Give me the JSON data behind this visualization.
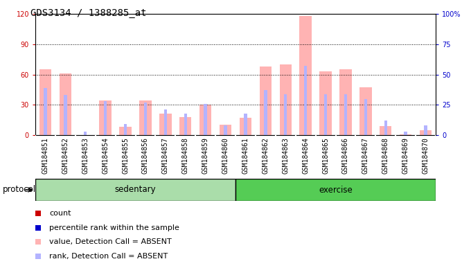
{
  "title": "GDS3134 / 1388285_at",
  "samples": [
    "GSM184851",
    "GSM184852",
    "GSM184853",
    "GSM184854",
    "GSM184855",
    "GSM184856",
    "GSM184857",
    "GSM184858",
    "GSM184859",
    "GSM184860",
    "GSM184861",
    "GSM184862",
    "GSM184863",
    "GSM184864",
    "GSM184865",
    "GSM184866",
    "GSM184867",
    "GSM184868",
    "GSM184869",
    "GSM184870"
  ],
  "absent_value": [
    65,
    61,
    0,
    34,
    8,
    34,
    21,
    18,
    30,
    10,
    17,
    68,
    70,
    118,
    63,
    65,
    47,
    9,
    1,
    5
  ],
  "absent_rank": [
    39,
    33,
    3,
    28,
    9,
    27,
    21,
    18,
    26,
    8,
    18,
    37,
    34,
    57,
    34,
    34,
    30,
    12,
    3,
    8
  ],
  "sedentary_count": 10,
  "exercise_count": 10,
  "sedentary_label": "sedentary",
  "exercise_label": "exercise",
  "protocol_label": "protocol",
  "ylim_left": [
    0,
    120
  ],
  "ylim_right": [
    0,
    100
  ],
  "yticks_left": [
    0,
    30,
    60,
    90,
    120
  ],
  "yticks_right": [
    0,
    25,
    50,
    75,
    100
  ],
  "ytick_labels_right": [
    "0",
    "25",
    "50",
    "75",
    "100%"
  ],
  "color_absent_bar": "#ffb3b3",
  "color_absent_rank": "#b3b3ff",
  "color_count": "#cc0000",
  "color_rank": "#0000cc",
  "bg_chart": "#ffffff",
  "bg_xticklabel": "#d3d3d3",
  "bg_sedentary": "#aaddaa",
  "bg_exercise": "#55cc55",
  "title_fontsize": 10,
  "tick_fontsize": 7,
  "label_fontsize": 8.5,
  "legend_fontsize": 8
}
